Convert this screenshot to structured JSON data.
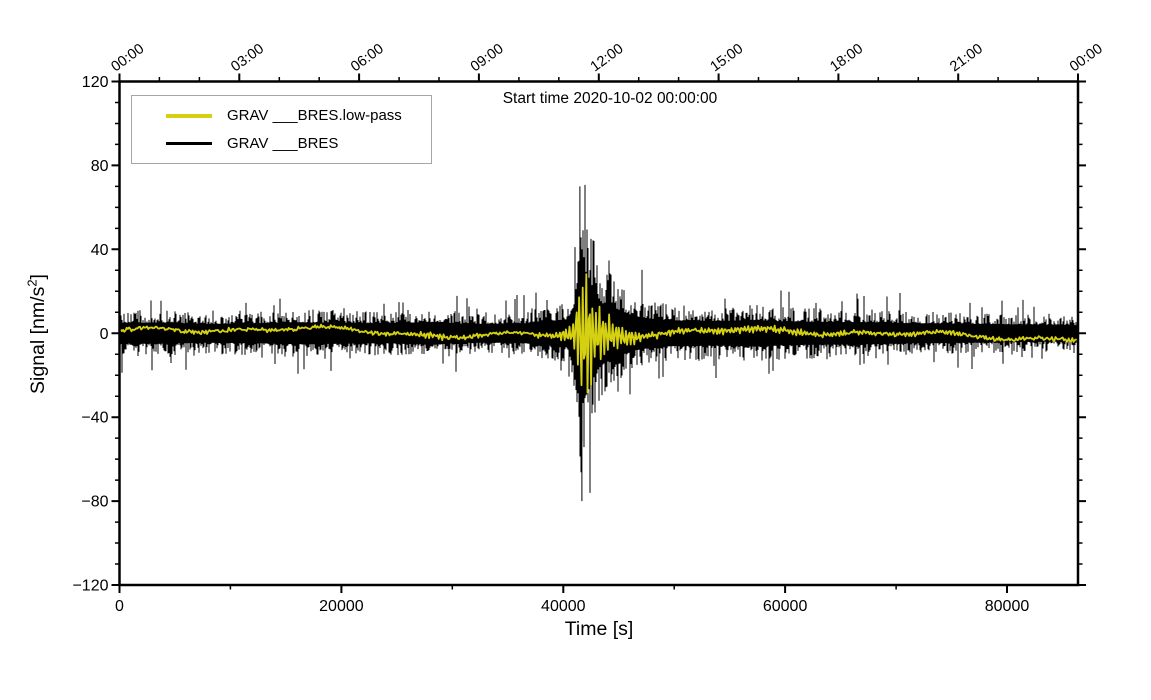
{
  "figure": {
    "title": "Start time 2020-10-02 00:00:00",
    "ylabel_parts": {
      "prefix": "Signal [nm/s",
      "sup": "2",
      "suffix": "]"
    },
    "xlabel": "Time [s]",
    "legend": [
      {
        "label": "GRAV ___BRES.low-pass",
        "color": "#d5d112"
      },
      {
        "label": "GRAV ___BRES",
        "color": "#000000"
      }
    ],
    "frame_color": "#000000",
    "legend_border_color": "#a6a6a6"
  },
  "chart_data": {
    "type": "line",
    "title": "Start time 2020-10-02 00:00:00",
    "xlabel": "Time [s]",
    "ylabel": "Signal [nm/s2]",
    "xlim": [
      0,
      86400
    ],
    "ylim": [
      -120,
      120
    ],
    "grid": false,
    "legend_position": "top-left",
    "x_axis": {
      "major_ticks": [
        0,
        20000,
        40000,
        60000,
        80000
      ],
      "major_tick_labels": [
        "0",
        "20000",
        "40000",
        "60000",
        "80000"
      ],
      "minor_step": 10000
    },
    "y_axis": {
      "major_ticks": [
        -120,
        -80,
        -40,
        0,
        40,
        80,
        120
      ],
      "major_tick_labels": [
        "−120",
        "−80",
        "−40",
        "0",
        "40",
        "80",
        "120"
      ],
      "minor_step": 10
    },
    "top_axis": {
      "major_ticks_s": [
        0,
        10800,
        21600,
        32400,
        43200,
        54000,
        64800,
        75600,
        86400
      ],
      "labels": [
        "00:00",
        "03:00",
        "06:00",
        "09:00",
        "12:00",
        "15:00",
        "18:00",
        "21:00",
        "00:00"
      ],
      "minor_step_s": 3600
    },
    "series": [
      {
        "name": "GRAV ___BRES",
        "color": "#000000",
        "style": "raw-seismogram-band",
        "max_value": 70,
        "min_value": -80,
        "peak_time_s": 41500,
        "envelope_nm_s2": [
          [
            0,
            11
          ],
          [
            4000,
            11
          ],
          [
            8000,
            10
          ],
          [
            12000,
            10.5
          ],
          [
            16000,
            11.5
          ],
          [
            20000,
            11
          ],
          [
            24000,
            10.5
          ],
          [
            28500,
            12
          ],
          [
            31000,
            10
          ],
          [
            34000,
            10
          ],
          [
            36500,
            10.5
          ],
          [
            38500,
            13
          ],
          [
            40200,
            14
          ],
          [
            40900,
            24
          ],
          [
            41300,
            58
          ],
          [
            41700,
            72
          ],
          [
            42200,
            62
          ],
          [
            42800,
            44
          ],
          [
            43500,
            32
          ],
          [
            44500,
            28
          ],
          [
            45500,
            22
          ],
          [
            46500,
            18
          ],
          [
            48000,
            15
          ],
          [
            50000,
            13.5
          ],
          [
            54000,
            13
          ],
          [
            57500,
            14
          ],
          [
            60000,
            12.5
          ],
          [
            64000,
            12
          ],
          [
            68000,
            11.5
          ],
          [
            72000,
            10.5
          ],
          [
            76000,
            10
          ],
          [
            80000,
            9.5
          ],
          [
            86400,
            8.5
          ]
        ]
      },
      {
        "name": "GRAV ___BRES.low-pass",
        "color": "#d5d112",
        "style": "low-pass-line",
        "envelope_nm_s2": [
          [
            0,
            3
          ],
          [
            10000,
            3
          ],
          [
            20000,
            3
          ],
          [
            26000,
            3
          ],
          [
            28500,
            4.5
          ],
          [
            30000,
            3.2
          ],
          [
            36000,
            3
          ],
          [
            39500,
            4
          ],
          [
            40900,
            9
          ],
          [
            41300,
            30
          ],
          [
            41700,
            40
          ],
          [
            42200,
            34
          ],
          [
            42800,
            24
          ],
          [
            43500,
            16
          ],
          [
            44500,
            12
          ],
          [
            45500,
            9
          ],
          [
            46500,
            5.5
          ],
          [
            48000,
            4.2
          ],
          [
            52000,
            3.5
          ],
          [
            57500,
            4.5
          ],
          [
            60000,
            3.8
          ],
          [
            70000,
            3.2
          ],
          [
            80000,
            3
          ],
          [
            86400,
            3
          ]
        ]
      }
    ]
  }
}
